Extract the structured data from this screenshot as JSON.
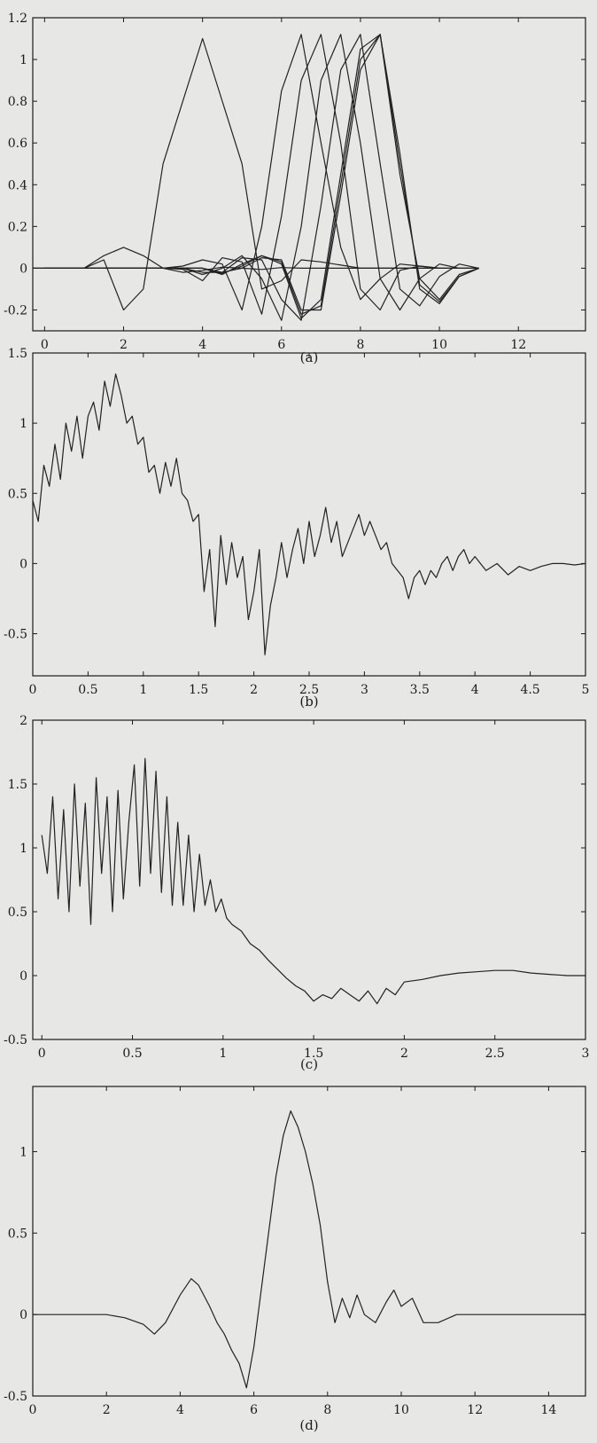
{
  "chart_data": [
    {
      "id": "a",
      "type": "line",
      "caption": "(a)",
      "xlim": [
        -0.3,
        13.7
      ],
      "ylim": [
        -0.3,
        1.2
      ],
      "xticks": [
        0,
        2,
        4,
        6,
        8,
        10,
        12
      ],
      "yticks": [
        -0.2,
        0,
        0.2,
        0.4,
        0.6,
        0.8,
        1,
        1.2
      ],
      "series": [
        {
          "x": [
            -0.3,
            0,
            0.5,
            1,
            1.5,
            2,
            2.5,
            3,
            3.5,
            4,
            4.5,
            5,
            5.5,
            6,
            6.5,
            7,
            7.5,
            8,
            8.5,
            9,
            10,
            11
          ],
          "y": [
            0,
            0,
            0,
            0,
            0.06,
            0.1,
            0.06,
            0,
            -0.02,
            -0.01,
            0.005,
            0,
            -0.006,
            0.003,
            0,
            0,
            0,
            0,
            0,
            0,
            0,
            0
          ]
        },
        {
          "x": [
            -0.3,
            0,
            1,
            1.5,
            2,
            2.5,
            3,
            4,
            5,
            5.5,
            6,
            6.5,
            7,
            8,
            9,
            10,
            11
          ],
          "y": [
            0,
            0,
            0,
            0.04,
            -0.2,
            -0.1,
            0.5,
            1.1,
            0.5,
            -0.1,
            -0.06,
            0.04,
            0.03,
            0,
            0,
            0,
            0
          ]
        },
        {
          "x": [
            0,
            2,
            3,
            3.5,
            4,
            4.5,
            5,
            5.5,
            6,
            6.5,
            7,
            7.5,
            8,
            8.5,
            9,
            9.5,
            10
          ],
          "y": [
            0,
            0,
            0,
            0.01,
            0.04,
            0.02,
            -0.2,
            0.2,
            0.85,
            1.12,
            0.6,
            0.1,
            -0.15,
            -0.05,
            0.02,
            0.01,
            0
          ]
        },
        {
          "x": [
            0,
            2,
            3,
            3.5,
            4,
            4.5,
            5,
            5.5,
            6,
            6.5,
            7,
            7.5,
            8,
            8.5,
            9,
            9.5,
            10
          ],
          "y": [
            0,
            0,
            0,
            -0.005,
            -0.06,
            0.05,
            0.03,
            -0.22,
            0.25,
            0.9,
            1.12,
            0.6,
            -0.1,
            -0.2,
            -0.01,
            0.01,
            0
          ]
        },
        {
          "x": [
            0,
            2,
            3,
            3.5,
            4,
            4.5,
            5,
            5.5,
            6,
            6.5,
            7,
            7.5,
            8,
            8.5,
            9,
            9.5,
            10,
            10.5
          ],
          "y": [
            0,
            0,
            0,
            0,
            -0.03,
            0,
            0.06,
            -0.05,
            -0.25,
            0.2,
            0.9,
            1.12,
            0.6,
            -0.05,
            -0.2,
            -0.05,
            0.02,
            0
          ]
        },
        {
          "x": [
            0,
            2,
            3,
            3.5,
            4,
            4.5,
            5,
            5.5,
            6,
            6.5,
            7,
            7.5,
            8,
            8.5,
            9,
            9.5,
            10,
            10.5,
            11
          ],
          "y": [
            0,
            0,
            0,
            0,
            -0.02,
            -0.02,
            0.05,
            0.04,
            -0.15,
            -0.25,
            0.3,
            0.95,
            1.12,
            0.5,
            -0.1,
            -0.18,
            -0.04,
            0.02,
            0
          ]
        },
        {
          "x": [
            0,
            2,
            3,
            4,
            4.5,
            5,
            5.5,
            6,
            6.5,
            7,
            7.5,
            8,
            8.5,
            9,
            9.5,
            10,
            10.5,
            11
          ],
          "y": [
            0,
            0,
            0,
            0,
            -0.03,
            0.02,
            0.06,
            0.02,
            -0.24,
            -0.15,
            0.45,
            1.05,
            1.12,
            0.45,
            -0.05,
            -0.15,
            -0.03,
            0
          ]
        },
        {
          "x": [
            0,
            2,
            3,
            4,
            4.5,
            5,
            5.5,
            6,
            6.5,
            7,
            7.5,
            8,
            8.5,
            9,
            9.5,
            10,
            10.5,
            11
          ],
          "y": [
            0,
            0,
            0,
            0,
            -0.025,
            0.01,
            0.06,
            0.03,
            -0.22,
            -0.18,
            0.4,
            1.0,
            1.12,
            0.5,
            -0.08,
            -0.16,
            -0.04,
            0
          ]
        },
        {
          "x": [
            0,
            2,
            3,
            4,
            4.5,
            5,
            5.5,
            6,
            6.5,
            7,
            7.5,
            8,
            8.5,
            9,
            9.5,
            10,
            10.5,
            11
          ],
          "y": [
            0,
            0,
            0,
            0,
            -0.02,
            0.0,
            0.05,
            0.04,
            -0.2,
            -0.2,
            0.35,
            0.95,
            1.12,
            0.55,
            -0.1,
            -0.17,
            -0.04,
            0
          ]
        }
      ]
    },
    {
      "id": "b",
      "type": "line",
      "caption": "(b)",
      "xlim": [
        0,
        5
      ],
      "ylim": [
        -0.8,
        1.5
      ],
      "xticks": [
        0,
        0.5,
        1,
        1.5,
        2,
        2.5,
        3,
        3.5,
        4,
        4.5,
        5
      ],
      "yticks": [
        -0.5,
        0,
        0.5,
        1,
        1.5
      ],
      "series": [
        {
          "x": [
            0,
            0.05,
            0.1,
            0.15,
            0.2,
            0.25,
            0.3,
            0.35,
            0.4,
            0.45,
            0.5,
            0.55,
            0.6,
            0.65,
            0.7,
            0.75,
            0.8,
            0.85,
            0.9,
            0.95,
            1.0,
            1.05,
            1.1,
            1.15,
            1.2,
            1.25,
            1.3,
            1.35,
            1.4,
            1.45,
            1.5,
            1.55,
            1.6,
            1.65,
            1.7,
            1.75,
            1.8,
            1.85,
            1.9,
            1.95,
            2.0,
            2.05,
            2.1,
            2.15,
            2.2,
            2.25,
            2.3,
            2.35,
            2.4,
            2.45,
            2.5,
            2.55,
            2.6,
            2.65,
            2.7,
            2.75,
            2.8,
            2.85,
            2.9,
            2.95,
            3.0,
            3.05,
            3.1,
            3.15,
            3.2,
            3.25,
            3.3,
            3.35,
            3.4,
            3.45,
            3.5,
            3.55,
            3.6,
            3.65,
            3.7,
            3.75,
            3.8,
            3.85,
            3.9,
            3.95,
            4.0,
            4.1,
            4.2,
            4.3,
            4.4,
            4.5,
            4.6,
            4.7,
            4.8,
            4.9,
            5.0
          ],
          "y": [
            0.45,
            0.3,
            0.7,
            0.55,
            0.85,
            0.6,
            1.0,
            0.8,
            1.05,
            0.75,
            1.05,
            1.15,
            0.95,
            1.3,
            1.12,
            1.35,
            1.2,
            1.0,
            1.05,
            0.85,
            0.9,
            0.65,
            0.7,
            0.5,
            0.72,
            0.55,
            0.75,
            0.5,
            0.45,
            0.3,
            0.35,
            -0.2,
            0.1,
            -0.45,
            0.2,
            -0.15,
            0.15,
            -0.1,
            0.05,
            -0.4,
            -0.2,
            0.1,
            -0.65,
            -0.3,
            -0.1,
            0.15,
            -0.1,
            0.1,
            0.25,
            0.0,
            0.3,
            0.05,
            0.2,
            0.4,
            0.15,
            0.3,
            0.05,
            0.15,
            0.25,
            0.35,
            0.2,
            0.3,
            0.2,
            0.1,
            0.15,
            0.0,
            -0.05,
            -0.1,
            -0.25,
            -0.1,
            -0.05,
            -0.15,
            -0.05,
            -0.1,
            0.0,
            0.05,
            -0.05,
            0.05,
            0.1,
            0.0,
            0.05,
            -0.05,
            0.0,
            -0.08,
            -0.02,
            -0.05,
            -0.02,
            0.0,
            0.0,
            -0.01,
            0.0
          ]
        }
      ]
    },
    {
      "id": "c",
      "type": "line",
      "caption": "(c)",
      "xlim": [
        -0.05,
        3
      ],
      "ylim": [
        -0.5,
        2
      ],
      "xticks": [
        0,
        0.5,
        1,
        1.5,
        2,
        2.5,
        3
      ],
      "yticks": [
        -0.5,
        0,
        0.5,
        1,
        1.5,
        2
      ],
      "series": [
        {
          "x": [
            0,
            0.03,
            0.06,
            0.09,
            0.12,
            0.15,
            0.18,
            0.21,
            0.24,
            0.27,
            0.3,
            0.33,
            0.36,
            0.39,
            0.42,
            0.45,
            0.48,
            0.51,
            0.54,
            0.57,
            0.6,
            0.63,
            0.66,
            0.69,
            0.72,
            0.75,
            0.78,
            0.81,
            0.84,
            0.87,
            0.9,
            0.93,
            0.96,
            0.99,
            1.02,
            1.05,
            1.1,
            1.15,
            1.2,
            1.25,
            1.3,
            1.35,
            1.4,
            1.45,
            1.5,
            1.55,
            1.6,
            1.65,
            1.7,
            1.75,
            1.8,
            1.85,
            1.9,
            1.95,
            2.0,
            2.1,
            2.2,
            2.3,
            2.4,
            2.5,
            2.6,
            2.7,
            2.8,
            2.9,
            3.0
          ],
          "y": [
            1.1,
            0.8,
            1.4,
            0.6,
            1.3,
            0.5,
            1.5,
            0.7,
            1.35,
            0.4,
            1.55,
            0.8,
            1.4,
            0.5,
            1.45,
            0.6,
            1.2,
            1.65,
            0.7,
            1.7,
            0.8,
            1.6,
            0.65,
            1.4,
            0.55,
            1.2,
            0.55,
            1.1,
            0.5,
            0.95,
            0.55,
            0.75,
            0.5,
            0.6,
            0.45,
            0.4,
            0.35,
            0.25,
            0.2,
            0.12,
            0.05,
            -0.02,
            -0.08,
            -0.12,
            -0.2,
            -0.15,
            -0.18,
            -0.1,
            -0.15,
            -0.2,
            -0.12,
            -0.22,
            -0.1,
            -0.15,
            -0.05,
            -0.03,
            0.0,
            0.02,
            0.03,
            0.04,
            0.04,
            0.02,
            0.01,
            0.0,
            0.0
          ]
        }
      ]
    },
    {
      "id": "d",
      "type": "line",
      "caption": "(d)",
      "xlim": [
        0,
        15
      ],
      "ylim": [
        -0.5,
        1.4
      ],
      "xticks": [
        0,
        2,
        4,
        6,
        8,
        10,
        12,
        14
      ],
      "yticks": [
        -0.5,
        0,
        0.5,
        1
      ],
      "series": [
        {
          "x": [
            0,
            1,
            2,
            2.5,
            3,
            3.3,
            3.6,
            4.0,
            4.3,
            4.5,
            4.8,
            5.0,
            5.2,
            5.4,
            5.6,
            5.8,
            6.0,
            6.2,
            6.4,
            6.6,
            6.8,
            7.0,
            7.2,
            7.4,
            7.6,
            7.8,
            8.0,
            8.2,
            8.4,
            8.6,
            8.8,
            9.0,
            9.3,
            9.6,
            9.8,
            10.0,
            10.3,
            10.6,
            11,
            11.5,
            12,
            13,
            14,
            15
          ],
          "y": [
            0,
            0,
            0,
            -0.02,
            -0.06,
            -0.12,
            -0.05,
            0.12,
            0.22,
            0.18,
            0.05,
            -0.05,
            -0.12,
            -0.22,
            -0.3,
            -0.45,
            -0.2,
            0.15,
            0.5,
            0.85,
            1.1,
            1.25,
            1.15,
            1.0,
            0.8,
            0.55,
            0.2,
            -0.05,
            0.1,
            -0.02,
            0.12,
            0.0,
            -0.05,
            0.08,
            0.15,
            0.05,
            0.1,
            -0.05,
            -0.05,
            0.0,
            0.0,
            0,
            0,
            0
          ]
        }
      ]
    }
  ]
}
